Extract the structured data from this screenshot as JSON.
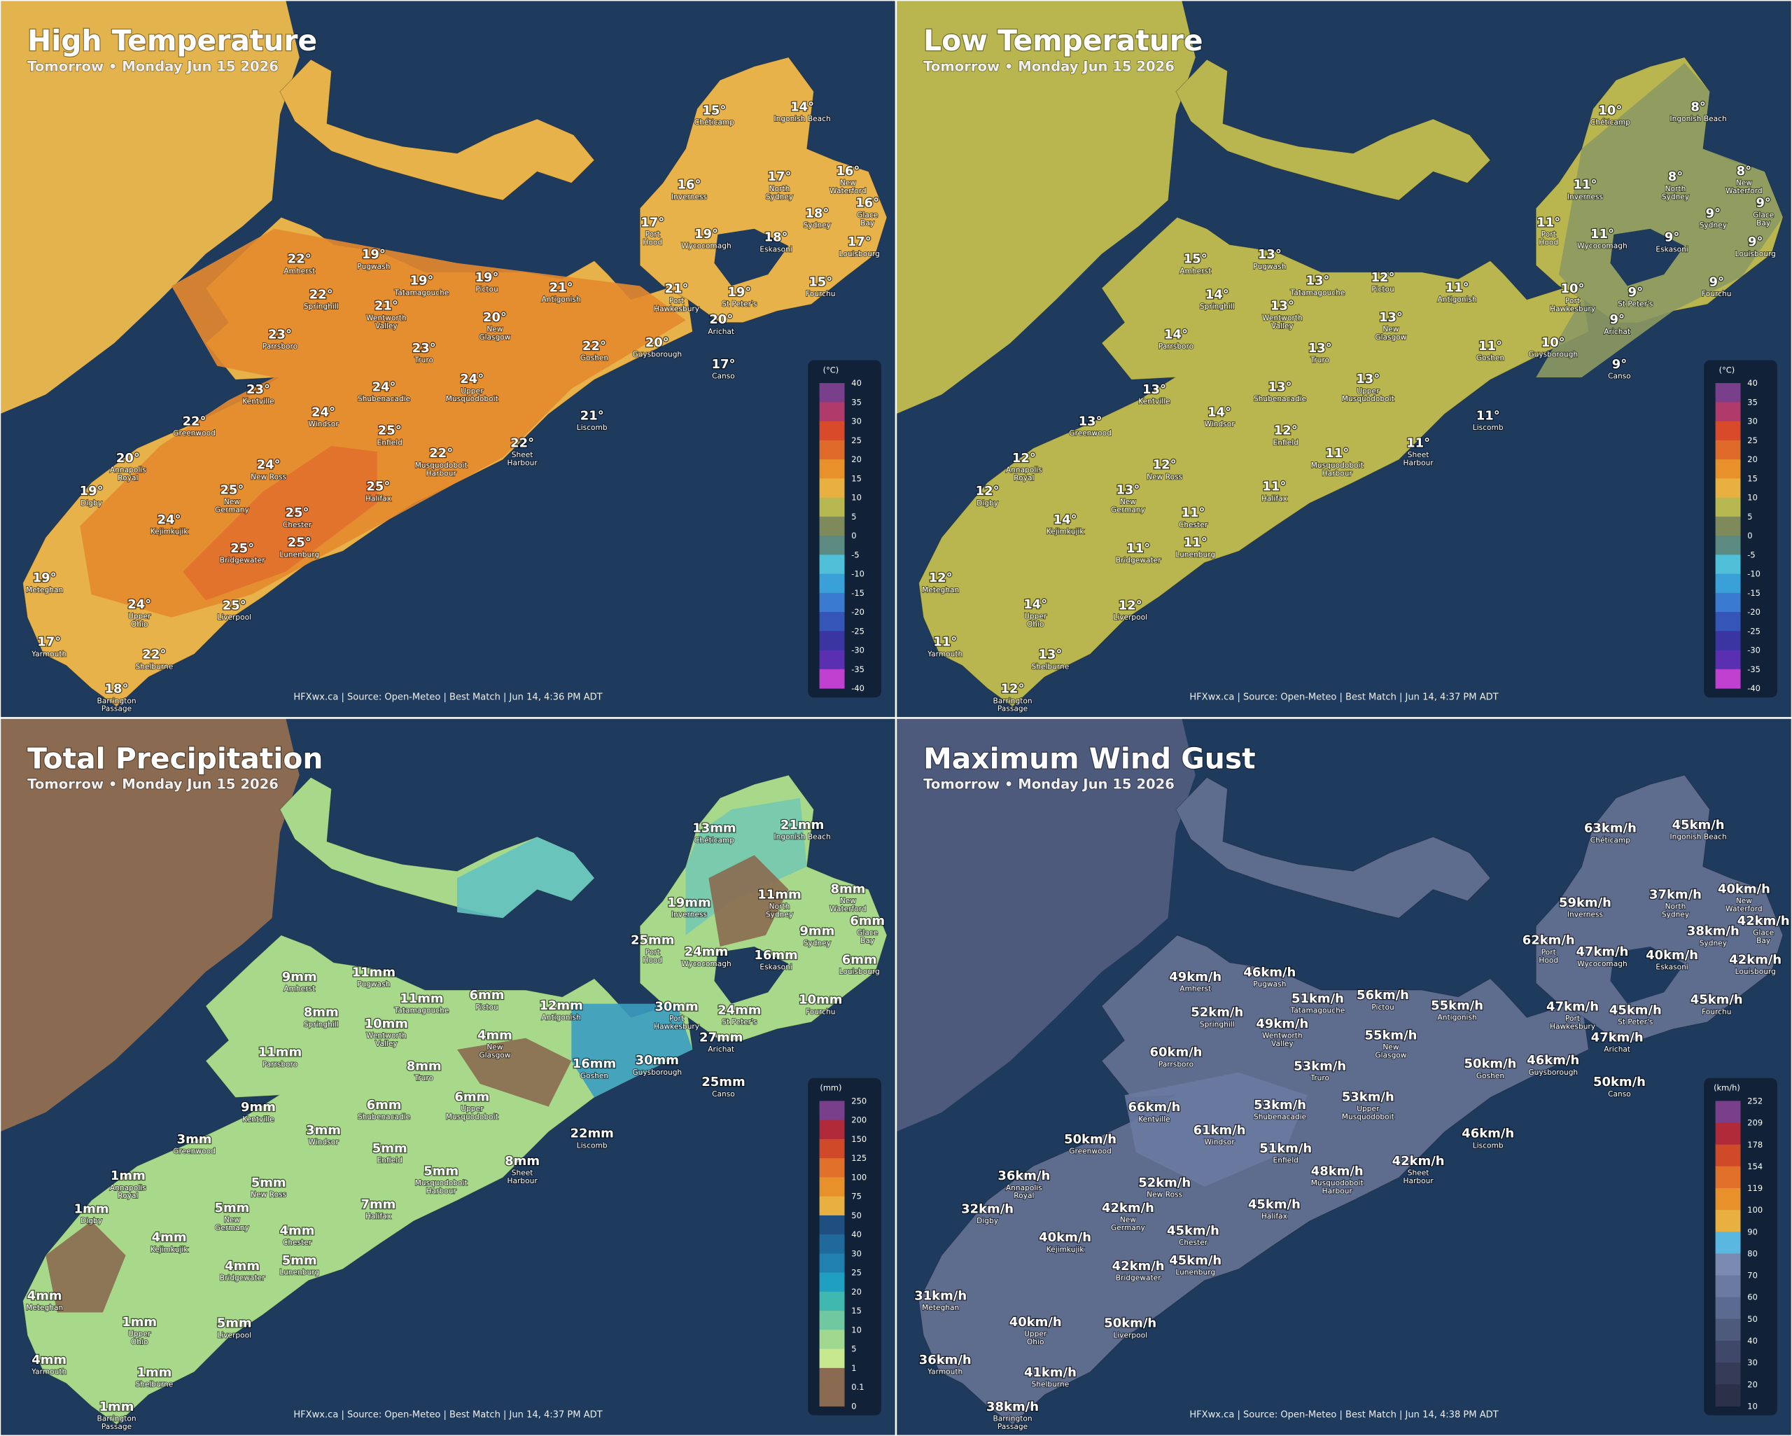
{
  "places": [
    [
      "Chéticamp"
    ],
    [
      "Ingonish Beach"
    ],
    [
      "Inverness"
    ],
    [
      "North",
      "Sydney"
    ],
    [
      "New",
      "Waterford"
    ],
    [
      "Glace",
      "Bay"
    ],
    [
      "Sydney"
    ],
    [
      "Port",
      "Hood"
    ],
    [
      "Wycocomagh"
    ],
    [
      "Eskasoni"
    ],
    [
      "Louisbourg"
    ],
    [
      "Pugwash"
    ],
    [
      "Amherst"
    ],
    [
      "Tatamagouche"
    ],
    [
      "Pictou"
    ],
    [
      "Antigonish"
    ],
    [
      "Port",
      "Hawkesbury"
    ],
    [
      "St Peter's"
    ],
    [
      "Fourchu"
    ],
    [
      "Springhill"
    ],
    [
      "Wentworth",
      "Valley"
    ],
    [
      "Arichat"
    ],
    [
      "New",
      "Glasgow"
    ],
    [
      "Parrsboro"
    ],
    [
      "Goshen"
    ],
    [
      "Guysborough"
    ],
    [
      "Truro"
    ],
    [
      "Canso"
    ],
    [
      "Kentville"
    ],
    [
      "Shubenacadie"
    ],
    [
      "Upper",
      "Musquodoboit"
    ],
    [
      "Windsor"
    ],
    [
      "Liscomb"
    ],
    [
      "Greenwood"
    ],
    [
      "Enfield"
    ],
    [
      "Musquodoboit",
      "Harbour"
    ],
    [
      "Sheet",
      "Harbour"
    ],
    [
      "Annapolis",
      "Royal"
    ],
    [
      "New Ross"
    ],
    [
      "Digby"
    ],
    [
      "Halifax"
    ],
    [
      "New",
      "Germany"
    ],
    [
      "Chester"
    ],
    [
      "Kejimkujik"
    ],
    [
      "Lunenburg"
    ],
    [
      "Bridgewater"
    ],
    [
      "Meteghan"
    ],
    [
      "Upper",
      "Ohio"
    ],
    [
      "Liverpool"
    ],
    [
      "Yarmouth"
    ],
    [
      "Shelburne"
    ],
    [
      "Barrington",
      "Passage"
    ]
  ],
  "panels": [
    {
      "title": "High Temperature",
      "subtitle": "Tomorrow • Monday Jun 15 2026",
      "unit": "(°C)",
      "legend_ticks": [
        40,
        35,
        30,
        25,
        20,
        15,
        10,
        5,
        0,
        -5,
        -10,
        -15,
        -20,
        -25,
        -30,
        -35,
        -40
      ],
      "source": "HFXwx.ca | Source: Open-Meteo | Best Match | Jun 14, 4:36 PM ADT",
      "values": [
        "15°",
        "14°",
        "16°",
        "17°",
        "16°",
        "16°",
        "18°",
        "17°",
        "19°",
        "18°",
        "17°",
        "19°",
        "22°",
        "19°",
        "19°",
        "21°",
        "21°",
        "19°",
        "15°",
        "22°",
        "21°",
        "20°",
        "20°",
        "23°",
        "22°",
        "20°",
        "23°",
        "17°",
        "23°",
        "24°",
        "24°",
        "24°",
        "21°",
        "22°",
        "25°",
        "22°",
        "22°",
        "20°",
        "24°",
        "19°",
        "25°",
        "25°",
        "25°",
        "24°",
        "25°",
        "25°",
        "19°",
        "24°",
        "25°",
        "17°",
        "22°",
        "18°"
      ]
    },
    {
      "title": "Low Temperature",
      "subtitle": "Tomorrow • Monday Jun 15 2026",
      "unit": "(°C)",
      "legend_ticks": [
        40,
        35,
        30,
        25,
        20,
        15,
        10,
        5,
        0,
        -5,
        -10,
        -15,
        -20,
        -25,
        -30,
        -35,
        -40
      ],
      "source": "HFXwx.ca | Source: Open-Meteo | Best Match | Jun 14, 4:37 PM ADT",
      "values": [
        "10°",
        "8°",
        "11°",
        "8°",
        "8°",
        "9°",
        "9°",
        "11°",
        "11°",
        "9°",
        "9°",
        "13°",
        "15°",
        "13°",
        "12°",
        "11°",
        "10°",
        "9°",
        "9°",
        "14°",
        "13°",
        "9°",
        "13°",
        "14°",
        "11°",
        "10°",
        "13°",
        "9°",
        "13°",
        "13°",
        "13°",
        "14°",
        "11°",
        "13°",
        "12°",
        "11°",
        "11°",
        "12°",
        "12°",
        "12°",
        "11°",
        "13°",
        "11°",
        "14°",
        "11°",
        "11°",
        "12°",
        "14°",
        "12°",
        "11°",
        "13°",
        "12°"
      ]
    },
    {
      "title": "Total Precipitation",
      "subtitle": "Tomorrow • Monday Jun 15 2026",
      "unit": "(mm)",
      "legend_ticks": [
        250,
        200,
        150,
        125,
        100,
        75,
        50,
        40,
        30,
        25,
        20,
        15,
        10,
        5,
        1,
        0.1,
        0
      ],
      "source": "HFXwx.ca | Source: Open-Meteo | Best Match | Jun 14, 4:37 PM ADT",
      "values": [
        "13mm",
        "21mm",
        "19mm",
        "11mm",
        "8mm",
        "6mm",
        "9mm",
        "25mm",
        "24mm",
        "16mm",
        "6mm",
        "11mm",
        "9mm",
        "11mm",
        "6mm",
        "12mm",
        "30mm",
        "24mm",
        "10mm",
        "8mm",
        "10mm",
        "27mm",
        "4mm",
        "11mm",
        "16mm",
        "30mm",
        "8mm",
        "25mm",
        "9mm",
        "6mm",
        "6mm",
        "3mm",
        "22mm",
        "3mm",
        "5mm",
        "5mm",
        "8mm",
        "1mm",
        "5mm",
        "1mm",
        "7mm",
        "5mm",
        "4mm",
        "4mm",
        "5mm",
        "4mm",
        "4mm",
        "1mm",
        "5mm",
        "4mm",
        "1mm",
        "1mm"
      ]
    },
    {
      "title": "Maximum Wind Gust",
      "subtitle": "Tomorrow • Monday Jun 15 2026",
      "unit": "(km/h)",
      "legend_ticks": [
        252,
        209,
        178,
        154,
        119,
        100,
        90,
        80,
        70,
        60,
        50,
        40,
        30,
        20,
        10
      ],
      "source": "HFXwx.ca | Source: Open-Meteo | Best Match | Jun 14, 4:38 PM ADT",
      "values": [
        "63km/h",
        "45km/h",
        "59km/h",
        "37km/h",
        "40km/h",
        "42km/h",
        "38km/h",
        "62km/h",
        "47km/h",
        "40km/h",
        "42km/h",
        "46km/h",
        "49km/h",
        "51km/h",
        "56km/h",
        "55km/h",
        "47km/h",
        "45km/h",
        "45km/h",
        "52km/h",
        "49km/h",
        "47km/h",
        "55km/h",
        "60km/h",
        "50km/h",
        "46km/h",
        "53km/h",
        "50km/h",
        "66km/h",
        "53km/h",
        "53km/h",
        "61km/h",
        "46km/h",
        "50km/h",
        "51km/h",
        "48km/h",
        "42km/h",
        "36km/h",
        "52km/h",
        "32km/h",
        "45km/h",
        "42km/h",
        "45km/h",
        "40km/h",
        "45km/h",
        "42km/h",
        "31km/h",
        "40km/h",
        "50km/h",
        "36km/h",
        "41km/h",
        "38km/h"
      ]
    }
  ]
}
